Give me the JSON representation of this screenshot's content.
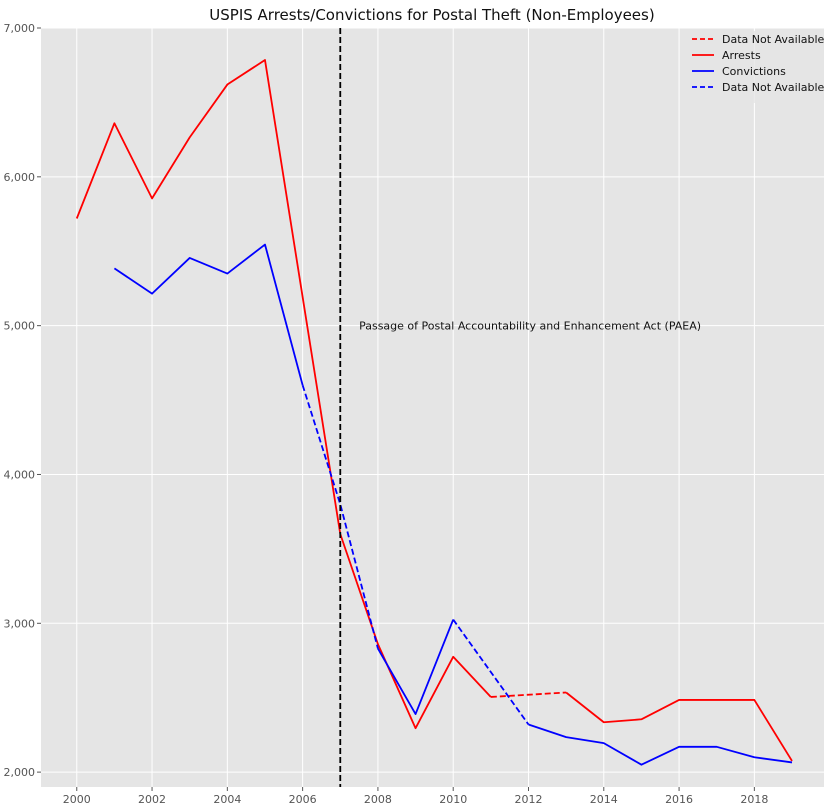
{
  "chart_data": {
    "type": "line",
    "title": "USPIS Arrests/Convictions for Postal Theft (Non-Employees)",
    "xlabel": "",
    "ylabel": "",
    "xlim": [
      1999.05,
      2019.85
    ],
    "ylim": [
      1900,
      7000
    ],
    "x_ticks": [
      2000,
      2002,
      2004,
      2006,
      2008,
      2010,
      2012,
      2014,
      2016,
      2018
    ],
    "y_ticks": [
      2000,
      3000,
      4000,
      5000,
      6000,
      7000
    ],
    "y_tick_labels": [
      "2,000",
      "3,000",
      "4,000",
      "5,000",
      "6,000",
      "7,000"
    ],
    "grid": true,
    "legend_position": "top-right",
    "background": "#e5e5e5",
    "series": [
      {
        "name": "Arrests",
        "color": "#ff0000",
        "style": "solid",
        "points": [
          [
            2000,
            5720
          ],
          [
            2001,
            6360
          ],
          [
            2002,
            5855
          ],
          [
            2003,
            6265
          ],
          [
            2004,
            6620
          ],
          [
            2005,
            6785
          ],
          [
            2007,
            3600
          ],
          [
            2008,
            2860
          ],
          [
            2009,
            2295
          ],
          [
            2010,
            2775
          ],
          [
            2011,
            2505
          ],
          null,
          [
            2013,
            2535
          ],
          [
            2014,
            2335
          ],
          [
            2015,
            2355
          ],
          [
            2016,
            2485
          ],
          [
            2017,
            2485
          ],
          [
            2018,
            2485
          ],
          [
            2019,
            2075
          ]
        ]
      },
      {
        "name": "Data Not Available",
        "color": "#ff0000",
        "style": "dashed",
        "points": [
          [
            2011,
            2505
          ],
          [
            2013,
            2535
          ]
        ]
      },
      {
        "name": "Convictions",
        "color": "#0000ff",
        "style": "solid",
        "points": [
          [
            2001,
            5385
          ],
          [
            2002,
            5215
          ],
          [
            2003,
            5455
          ],
          [
            2004,
            5350
          ],
          [
            2005,
            5545
          ],
          [
            2006,
            4600
          ],
          null,
          [
            2008,
            2830
          ],
          [
            2009,
            2390
          ],
          [
            2010,
            3025
          ],
          null,
          [
            2012,
            2320
          ],
          [
            2013,
            2235
          ],
          [
            2014,
            2195
          ],
          [
            2015,
            2050
          ],
          [
            2016,
            2170
          ],
          [
            2017,
            2170
          ],
          [
            2018,
            2100
          ],
          [
            2019,
            2065
          ]
        ]
      },
      {
        "name": "Data Not Available",
        "color": "#0000ff",
        "style": "dashed",
        "points": [
          [
            2006,
            4600
          ],
          [
            2007,
            3800
          ],
          [
            2008,
            2830
          ],
          null,
          [
            2010,
            3025
          ],
          [
            2012,
            2320
          ]
        ]
      }
    ],
    "vline": {
      "x": 2007,
      "color": "#000000",
      "style": "dashed"
    },
    "annotation": {
      "text": "Passage of Postal Accountability and Enhancement Act (PAEA)",
      "x": 2007.5,
      "y": 5000
    },
    "legend": [
      {
        "label": "Data Not Available",
        "color": "#ff0000",
        "style": "dashed"
      },
      {
        "label": "Arrests",
        "color": "#ff0000",
        "style": "solid"
      },
      {
        "label": "Convictions",
        "color": "#0000ff",
        "style": "solid"
      },
      {
        "label": "Data Not Available",
        "color": "#0000ff",
        "style": "dashed"
      }
    ]
  }
}
